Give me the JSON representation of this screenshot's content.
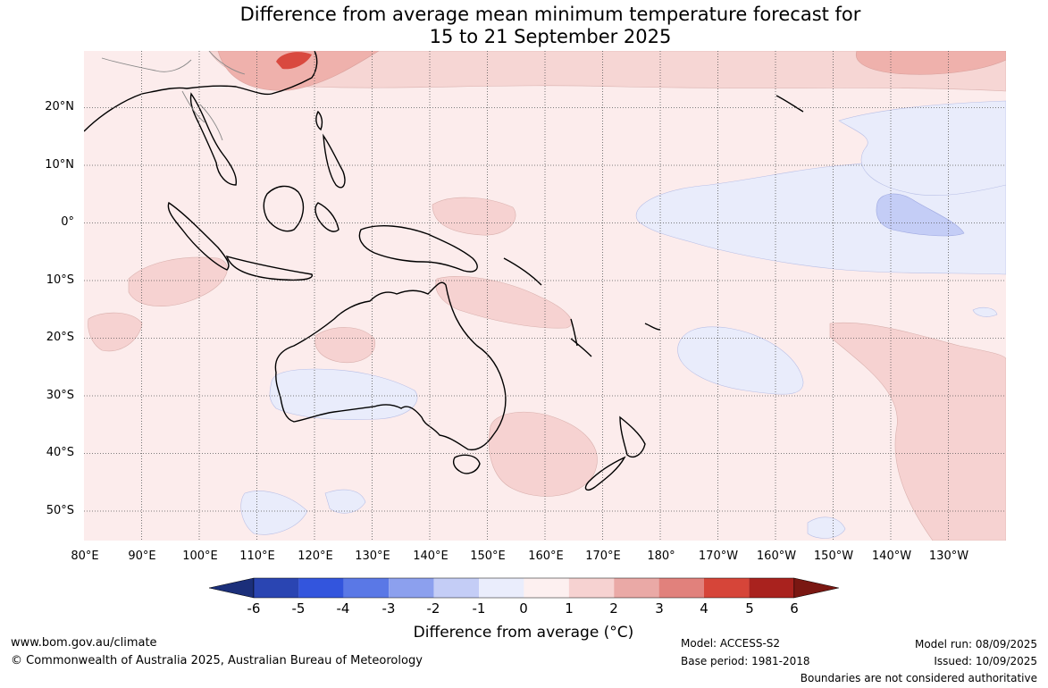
{
  "title": {
    "line1": "Difference from average mean minimum temperature forecast for",
    "line2": "15 to 21 September 2025"
  },
  "map": {
    "lat_labels": [
      "20°N",
      "10°N",
      "0°",
      "10°S",
      "20°S",
      "30°S",
      "40°S",
      "50°S"
    ],
    "lon_labels": [
      "80°E",
      "90°E",
      "100°E",
      "110°E",
      "120°E",
      "130°E",
      "140°E",
      "150°E",
      "160°E",
      "170°E",
      "180°",
      "170°W",
      "160°W",
      "150°W",
      "140°W",
      "130°W"
    ],
    "gridlines": "dotted"
  },
  "colorbar": {
    "ticks": [
      "-6",
      "-5",
      "-4",
      "-3",
      "-2",
      "-1",
      "0",
      "1",
      "2",
      "3",
      "4",
      "5",
      "6"
    ],
    "colors": [
      "#1b2f7a",
      "#2a45b2",
      "#3355dd",
      "#5a78e6",
      "#8ca0ee",
      "#c4cdf6",
      "#eaedfc",
      "#fdf0f0",
      "#f6d2d1",
      "#eaa9a6",
      "#e1817c",
      "#d64539",
      "#a9221e",
      "#7a1712"
    ],
    "label": "Difference from average (°C)"
  },
  "footer": {
    "website": "www.bom.gov.au/climate",
    "copyright": "© Commonwealth of Australia 2025, Australian Bureau of Meteorology",
    "model": "Model: ACCESS-S2",
    "base_period": "Base period: 1981-2018",
    "model_run": "Model run: 08/09/2025",
    "issued": "Issued: 10/09/2025",
    "disclaimer": "Boundaries are not considered authoritative"
  }
}
